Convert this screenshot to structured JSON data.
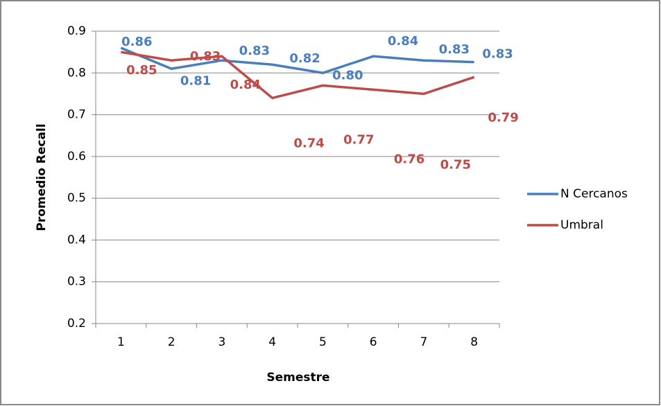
{
  "chart_data": {
    "type": "line",
    "y_label": "Promedio Recall",
    "x_label": "Semestre",
    "categories": [
      "1",
      "2",
      "3",
      "4",
      "5",
      "6",
      "7",
      "8"
    ],
    "series": [
      {
        "name": "N Cercanos",
        "color": "#4a7ebb",
        "values": [
          0.86,
          0.81,
          0.83,
          0.82,
          0.8,
          0.84,
          0.83,
          0.826
        ],
        "value_labels": [
          "0.86",
          "0.81",
          "0.83",
          "0.82",
          "0.80",
          "0.84",
          "0.83",
          "0.83"
        ]
      },
      {
        "name": "Umbral",
        "color": "#be4b48",
        "values": [
          0.85,
          0.83,
          0.84,
          0.74,
          0.77,
          0.76,
          0.75,
          0.79
        ],
        "value_labels": [
          "0.85",
          "0.83",
          "0.84",
          "0.74",
          "0.77",
          "0.76",
          "0.75",
          "0.79"
        ]
      }
    ],
    "ylim": [
      0.2,
      0.9
    ],
    "yticks": [
      0.2,
      0.3,
      0.4,
      0.5,
      0.6,
      0.7,
      0.8,
      0.9
    ],
    "grid": true
  }
}
